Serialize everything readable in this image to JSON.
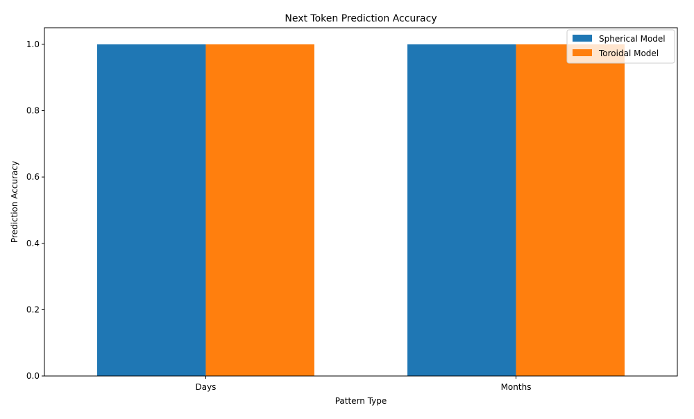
{
  "chart_data": {
    "type": "bar",
    "title": "Next Token Prediction Accuracy",
    "xlabel": "Pattern Type",
    "ylabel": "Prediction Accuracy",
    "categories": [
      "Days",
      "Months"
    ],
    "series": [
      {
        "name": "Spherical Model",
        "values": [
          1.0,
          1.0
        ],
        "color": "#1f77b4"
      },
      {
        "name": "Toroidal Model",
        "values": [
          1.0,
          1.0
        ],
        "color": "#ff7f0e"
      }
    ],
    "ylim": [
      0,
      1.05
    ],
    "yticks": [
      0.0,
      0.2,
      0.4,
      0.6,
      0.8,
      1.0
    ],
    "ytick_labels": [
      "0.0",
      "0.2",
      "0.4",
      "0.6",
      "0.8",
      "1.0"
    ],
    "grid": false,
    "legend_position": "top-right"
  }
}
